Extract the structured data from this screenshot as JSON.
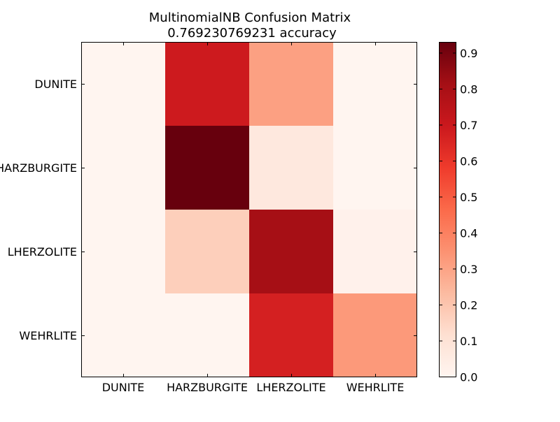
{
  "chart_data": {
    "type": "heatmap",
    "title": "MultinomialNB Confusion Matrix",
    "subtitle": "0.769230769231 accuracy",
    "row_labels": [
      "DUNITE",
      "HARZBURGITE",
      "LHERZOLITE",
      "WEHRLITE"
    ],
    "col_labels": [
      "DUNITE",
      "HARZBURGITE",
      "LHERZOLITE",
      "WEHRLITE"
    ],
    "values": [
      [
        0.0,
        0.69,
        0.31,
        0.0
      ],
      [
        0.0,
        0.93,
        0.07,
        0.0
      ],
      [
        0.0,
        0.17,
        0.81,
        0.02
      ],
      [
        0.0,
        0.0,
        0.67,
        0.33
      ]
    ],
    "colormap": "Reds",
    "colorbar": {
      "range": [
        0.0,
        0.93
      ],
      "ticks": [
        "0.0",
        "0.1",
        "0.2",
        "0.3",
        "0.4",
        "0.5",
        "0.6",
        "0.7",
        "0.8",
        "0.9"
      ]
    }
  }
}
